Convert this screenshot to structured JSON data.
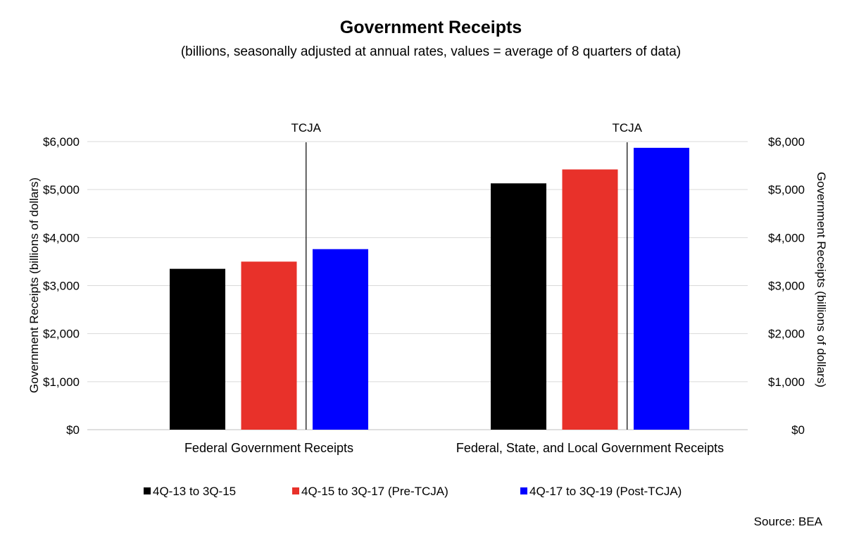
{
  "chart_data": {
    "type": "bar",
    "title": "Government Receipts",
    "subtitle": "(billions, seasonally adjusted at annual rates, values = average of 8 quarters of data)",
    "categories": [
      "Federal Government Receipts",
      "Federal, State, and Local Government Receipts"
    ],
    "series": [
      {
        "name": "4Q-13 to 3Q-15",
        "color": "#000000",
        "values": [
          3350,
          5130
        ]
      },
      {
        "name": "4Q-15 to 3Q-17 (Pre-TCJA)",
        "color": "#e8312a",
        "values": [
          3500,
          5420
        ]
      },
      {
        "name": "4Q-17 to 3Q-19 (Post-TCJA)",
        "color": "#0000ff",
        "values": [
          3760,
          5870
        ]
      }
    ],
    "ylabel": "Government Receipts (billions of dollars)",
    "ylabel_right": "Government Receipts (billions of dollars)",
    "ylim": [
      0,
      6000
    ],
    "yticks": [
      0,
      1000,
      2000,
      3000,
      4000,
      5000,
      6000
    ],
    "ytick_labels": [
      "$0",
      "$1,000",
      "$2,000",
      "$3,000",
      "$4,000",
      "$5,000",
      "$6,000"
    ],
    "grid": true,
    "legend_position": "bottom",
    "annotations": [
      {
        "text": "TCJA",
        "category_index": 0
      },
      {
        "text": "TCJA",
        "category_index": 1
      }
    ],
    "source": "Source: BEA"
  }
}
